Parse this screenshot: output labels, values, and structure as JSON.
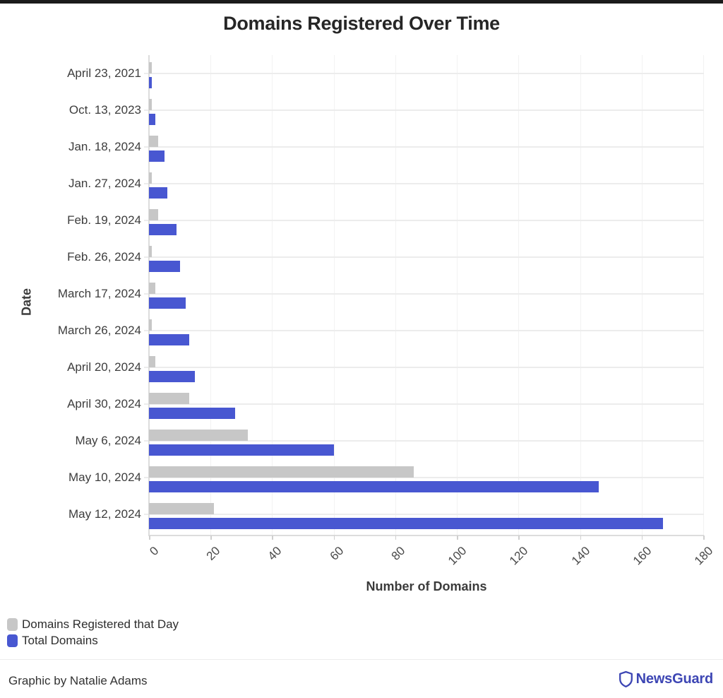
{
  "page": {
    "title": "Domains Registered Over Time",
    "credit": "Graphic by Natalie Adams",
    "brand": "NewsGuard"
  },
  "colors": {
    "accent_blue": "#4857d1",
    "series_gray": "#c7c7c7",
    "brand_blue": "#3d46b4",
    "topbar": "#1b1b1b"
  },
  "chart_data": {
    "type": "bar",
    "orientation": "horizontal",
    "title": "Domains Registered Over Time",
    "xlabel": "Number of Domains",
    "ylabel": "Date",
    "xlim": [
      0,
      180
    ],
    "xticks": [
      0,
      20,
      40,
      60,
      80,
      100,
      120,
      140,
      160,
      180
    ],
    "grid": true,
    "legend_position": "bottom-left",
    "categories": [
      "April 23, 2021",
      "Oct. 13, 2023",
      "Jan. 18, 2024",
      "Jan. 27, 2024",
      "Feb. 19, 2024",
      "Feb. 26, 2024",
      "March 17, 2024",
      "March 26, 2024",
      "April 20, 2024",
      "April 30, 2024",
      "May 6, 2024",
      "May 10, 2024",
      "May 12, 2024"
    ],
    "series": [
      {
        "name": "Domains Registered that Day",
        "color": "#c7c7c7",
        "values": [
          1,
          1,
          3,
          1,
          3,
          1,
          2,
          1,
          2,
          13,
          32,
          86,
          21
        ]
      },
      {
        "name": "Total Domains",
        "color": "#4857d1",
        "values": [
          1,
          2,
          5,
          6,
          9,
          10,
          12,
          13,
          15,
          28,
          60,
          146,
          167
        ]
      }
    ]
  }
}
